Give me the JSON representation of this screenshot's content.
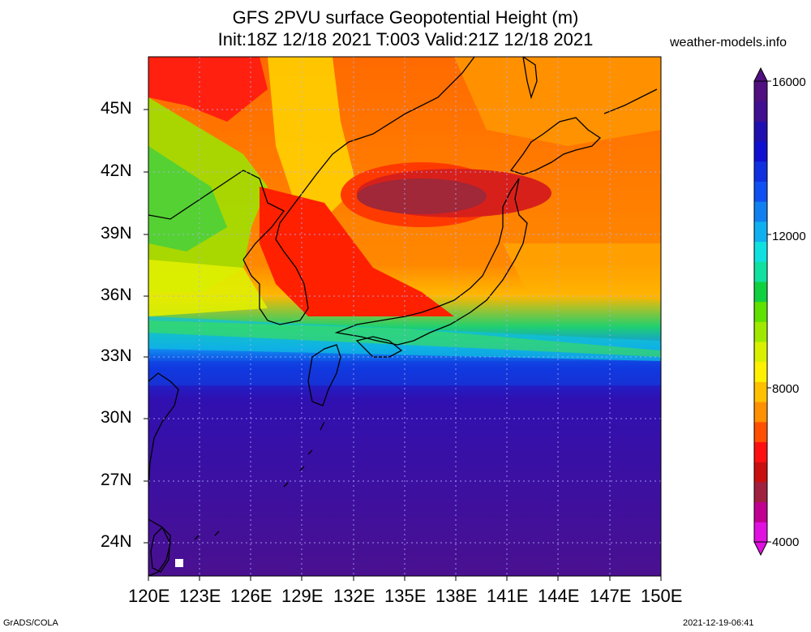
{
  "title_line1": "GFS 2PVU surface Geopotential Height (m)",
  "title_line2": "Init:18Z 12/18 2021 T:003 Valid:21Z 12/18 2021",
  "site": "weather-models.info",
  "footer_left": "GrADS/COLA",
  "footer_right": "2021-12-19-06:41",
  "lat_labels": [
    "45N",
    "42N",
    "39N",
    "36N",
    "33N",
    "30N",
    "27N",
    "24N"
  ],
  "lon_labels": [
    "120E",
    "123E",
    "126E",
    "129E",
    "132E",
    "135E",
    "138E",
    "141E",
    "144E",
    "147E",
    "150E"
  ],
  "colorbar": {
    "labels": [
      "16000",
      "12000",
      "8000",
      "4000"
    ],
    "colors": [
      "#e010e0",
      "#c00090",
      "#a02040",
      "#c81010",
      "#ff1010",
      "#ff5000",
      "#ff9000",
      "#ffc000",
      "#fff000",
      "#d8f000",
      "#a0e800",
      "#60e000",
      "#10d040",
      "#10e0a0",
      "#10e0e0",
      "#10b0f0",
      "#1080f0",
      "#1050f0",
      "#1030e0",
      "#1010d0",
      "#2010b0",
      "#401090",
      "#501080"
    ]
  },
  "map": {
    "region": "East Asia / Japan",
    "projection": "lat-lon",
    "lon_range": [
      120,
      150
    ],
    "lat_range": [
      22.5,
      47.5
    ]
  }
}
